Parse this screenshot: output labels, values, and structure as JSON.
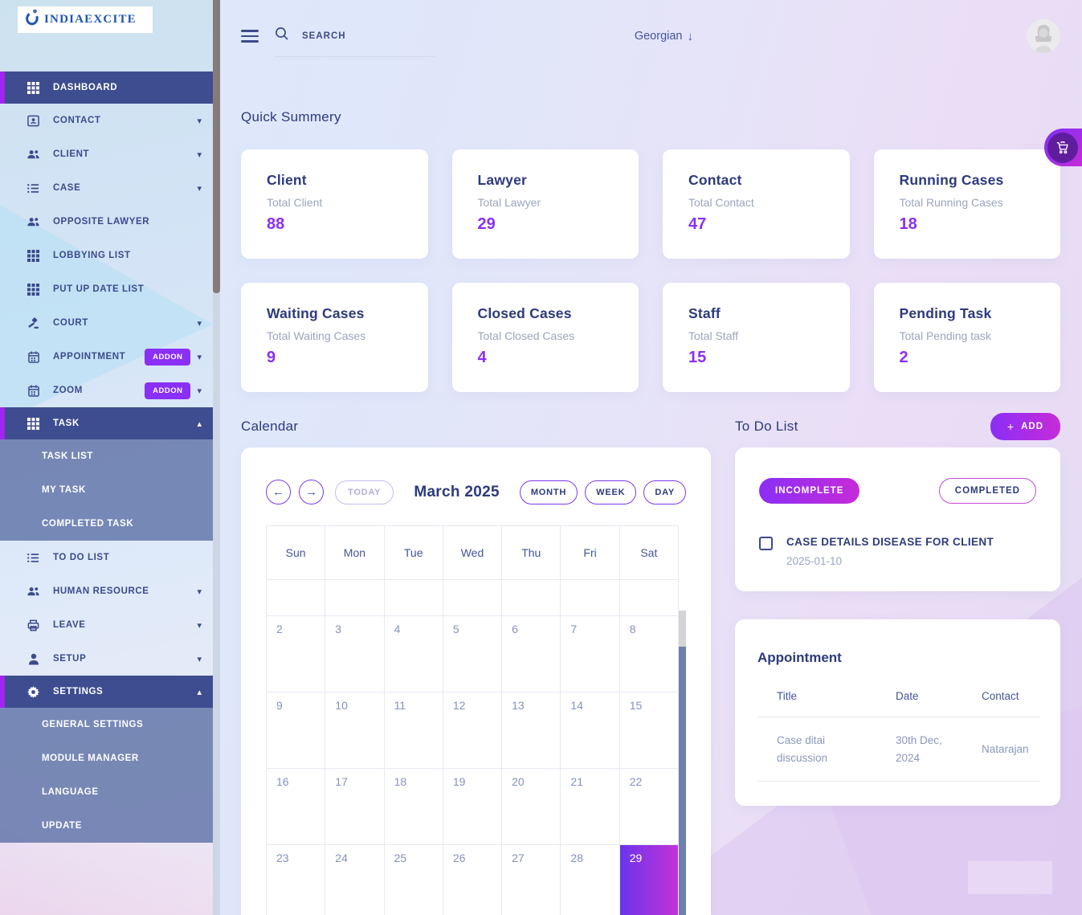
{
  "brand": {
    "name": "INDIAEXCITE"
  },
  "topbar": {
    "search_placeholder": "SEARCH",
    "language": "Georgian"
  },
  "sidebar": {
    "items": [
      {
        "label": "DASHBOARD",
        "icon": "grid-icon",
        "active": true
      },
      {
        "label": "CONTACT",
        "icon": "contact-card-icon",
        "caret": "down"
      },
      {
        "label": "CLIENT",
        "icon": "users-icon",
        "caret": "down"
      },
      {
        "label": "CASE",
        "icon": "list-icon",
        "caret": "down"
      },
      {
        "label": "OPPOSITE LAWYER",
        "icon": "users-icon"
      },
      {
        "label": "LOBBYING LIST",
        "icon": "grid-icon"
      },
      {
        "label": "PUT UP DATE LIST",
        "icon": "grid-icon"
      },
      {
        "label": "COURT",
        "icon": "gavel-icon",
        "caret": "down"
      },
      {
        "label": "APPOINTMENT",
        "icon": "calendar-icon",
        "badge": "ADDON",
        "caret": "down"
      },
      {
        "label": "ZOOM",
        "icon": "calendar-icon",
        "badge": "ADDON",
        "caret": "down"
      },
      {
        "label": "TASK",
        "icon": "grid-icon",
        "active": true,
        "caret": "up"
      },
      {
        "label": "TASK LIST",
        "sub": true
      },
      {
        "label": "MY TASK",
        "sub": true
      },
      {
        "label": "COMPLETED TASK",
        "sub": true
      },
      {
        "label": "TO DO LIST",
        "icon": "list-icon"
      },
      {
        "label": "HUMAN RESOURCE",
        "icon": "users-icon",
        "caret": "down"
      },
      {
        "label": "LEAVE",
        "icon": "printer-icon",
        "caret": "down"
      },
      {
        "label": "SETUP",
        "icon": "person-icon",
        "caret": "down"
      },
      {
        "label": "SETTINGS",
        "icon": "gear-icon",
        "active": true,
        "caret": "up"
      },
      {
        "label": "GENERAL SETTINGS",
        "sub": true
      },
      {
        "label": "MODULE MANAGER",
        "sub": true
      },
      {
        "label": "LANGUAGE",
        "sub": true
      },
      {
        "label": "UPDATE",
        "sub": true
      }
    ]
  },
  "summary": {
    "title": "Quick Summery",
    "cards": [
      {
        "title": "Client",
        "subtitle": "Total Client",
        "value": "88"
      },
      {
        "title": "Lawyer",
        "subtitle": "Total Lawyer",
        "value": "29"
      },
      {
        "title": "Contact",
        "subtitle": "Total Contact",
        "value": "47"
      },
      {
        "title": "Running Cases",
        "subtitle": "Total Running Cases",
        "value": "18"
      },
      {
        "title": "Waiting Cases",
        "subtitle": "Total Waiting Cases",
        "value": "9"
      },
      {
        "title": "Closed Cases",
        "subtitle": "Total Closed Cases",
        "value": "4"
      },
      {
        "title": "Staff",
        "subtitle": "Total Staff",
        "value": "15"
      },
      {
        "title": "Pending Task",
        "subtitle": "Total Pending task",
        "value": "2"
      }
    ]
  },
  "calendar": {
    "section_title": "Calendar",
    "month_title": "March 2025",
    "today_label": "TODAY",
    "views": [
      "MONTH",
      "WEEK",
      "DAY"
    ],
    "day_names": [
      "Sun",
      "Mon",
      "Tue",
      "Wed",
      "Thu",
      "Fri",
      "Sat"
    ],
    "weeks": [
      [
        "",
        "",
        "",
        "",
        "",
        "",
        ""
      ],
      [
        "2",
        "3",
        "4",
        "5",
        "6",
        "7",
        "8"
      ],
      [
        "9",
        "10",
        "11",
        "12",
        "13",
        "14",
        "15"
      ],
      [
        "16",
        "17",
        "18",
        "19",
        "20",
        "21",
        "22"
      ],
      [
        "23",
        "24",
        "25",
        "26",
        "27",
        "28",
        "29"
      ]
    ],
    "highlighted_day": "29"
  },
  "todo": {
    "section_title": "To Do List",
    "add_label": "ADD",
    "filters": {
      "incomplete": "INCOMPLETE",
      "completed": "COMPLETED"
    },
    "items": [
      {
        "title": "CASE DETAILS DISEASE FOR CLIENT",
        "date": "2025-01-10",
        "checked": false
      }
    ]
  },
  "appointment": {
    "title": "Appointment",
    "columns": [
      "Title",
      "Date",
      "Contact"
    ],
    "rows": [
      {
        "title": "Case ditai discussion",
        "date": "30th Dec, 2024",
        "contact": "Natarajan"
      }
    ]
  },
  "colors": {
    "accent_purple": "#8b2ff5",
    "accent_magenta": "#c62bd8",
    "active_nav": "#3d4d8f",
    "submenu": "#6a7aac",
    "nav_text": "#3b4a8c",
    "today_gradient_start": "#6a34eb",
    "today_gradient_end": "#c234d9"
  }
}
